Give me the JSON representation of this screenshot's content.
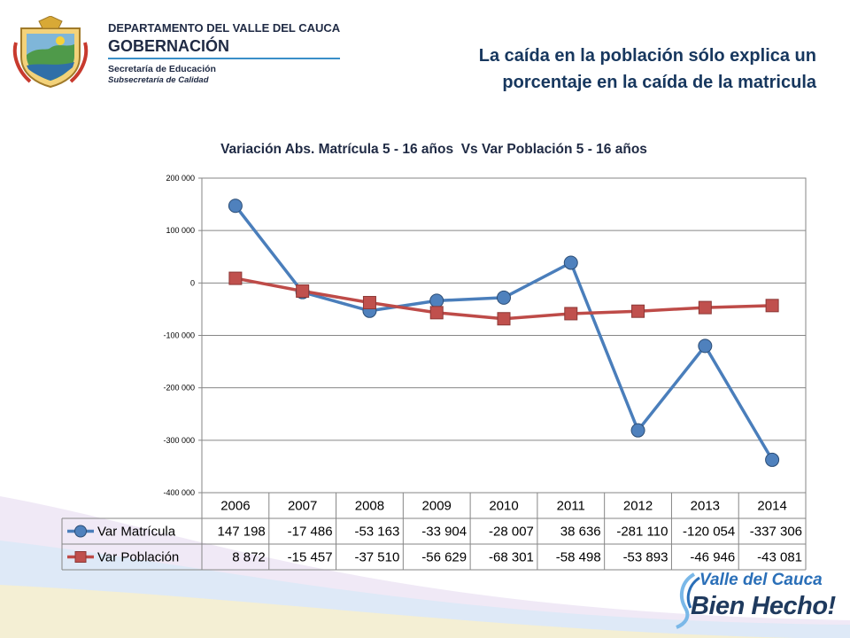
{
  "header": {
    "department": "DEPARTAMENTO DEL VALLE DEL CAUCA",
    "government": "GOBERNACIÓN",
    "secretaria": "Secretaría de Educación",
    "subsecretaria": "Subsecretaría de Calidad"
  },
  "slide_title": {
    "line1": "La caída en la población sólo explica un",
    "line2": "porcentaje en la caída de la matricula"
  },
  "brand": {
    "line1": "Valle del Cauca",
    "line2": "Bien Hecho!"
  },
  "colors": {
    "series1": "#4a7ebb",
    "series1_marker": "#4f81bd",
    "series2": "#be4b48",
    "series2_marker": "#c0504d",
    "title": "#17375e"
  },
  "chart_data": {
    "type": "line",
    "title": "Variación Abs. Matrícula 5 - 16 años  Vs Var Población 5 - 16 años",
    "categories": [
      "2006",
      "2007",
      "2008",
      "2009",
      "2010",
      "2011",
      "2012",
      "2013",
      "2014"
    ],
    "series": [
      {
        "name": "Var Matrícula",
        "values": [
          147198,
          -17486,
          -53163,
          -33904,
          -28007,
          38636,
          -281110,
          -120054,
          -337306
        ],
        "labels": [
          "147 198",
          "-17 486",
          "-53 163",
          "-33 904",
          "-28 007",
          "38 636",
          "-281 110",
          "-120 054",
          "-337 306"
        ],
        "color": "#4a7ebb",
        "marker": "circle"
      },
      {
        "name": "Var Población",
        "values": [
          8872,
          -15457,
          -37510,
          -56629,
          -68301,
          -58498,
          -53893,
          -46946,
          -43081
        ],
        "labels": [
          "8 872",
          "-15 457",
          "-37 510",
          "-56 629",
          "-68 301",
          "-58 498",
          "-53 893",
          "-46 946",
          "-43 081"
        ],
        "color": "#be4b48",
        "marker": "square"
      }
    ],
    "yticks": [
      200000,
      100000,
      0,
      -100000,
      -200000,
      -300000,
      -400000
    ],
    "ytick_labels": [
      "200 000",
      "100 000",
      "0",
      "-100 000",
      "-200 000",
      "-300 000",
      "-400 000"
    ],
    "ylim": [
      -400000,
      200000
    ],
    "grid": true,
    "legend": "data-table"
  }
}
